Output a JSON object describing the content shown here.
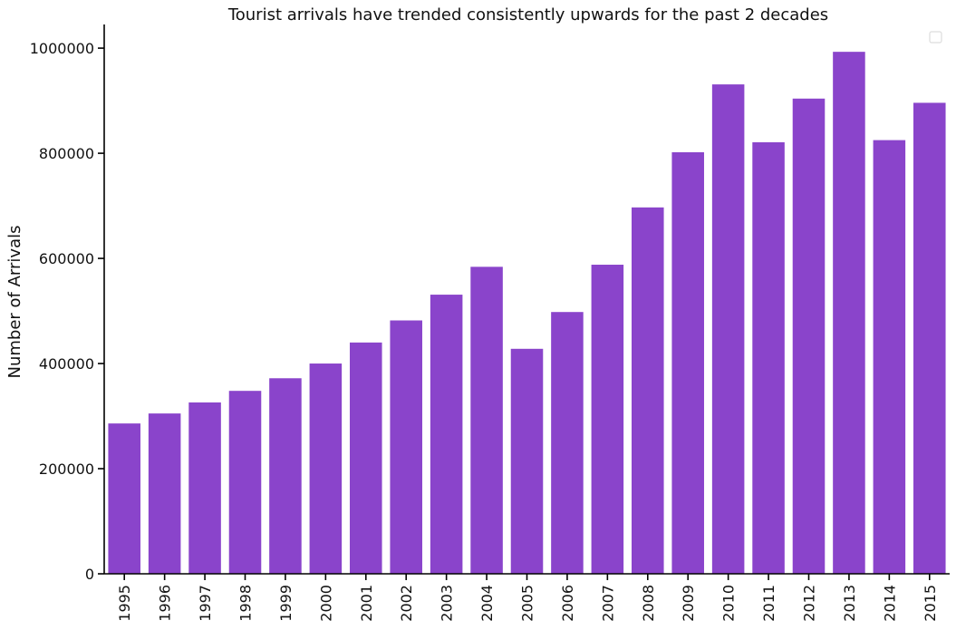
{
  "chart_data": {
    "type": "bar",
    "title": "Tourist arrivals have trended consistently upwards for the past 2 decades",
    "xlabel": "",
    "ylabel": "Number of Arrivals",
    "categories": [
      "1995",
      "1996",
      "1997",
      "1998",
      "1999",
      "2000",
      "2001",
      "2002",
      "2003",
      "2004",
      "2005",
      "2006",
      "2007",
      "2008",
      "2009",
      "2010",
      "2011",
      "2012",
      "2013",
      "2014",
      "2015"
    ],
    "values": [
      286000,
      305000,
      326000,
      348000,
      372000,
      400000,
      440000,
      482000,
      531000,
      584000,
      428000,
      498000,
      588000,
      697000,
      802000,
      931000,
      821000,
      904000,
      993000,
      825000,
      896000
    ],
    "yticks": [
      0,
      200000,
      400000,
      600000,
      800000,
      1000000
    ],
    "ytick_labels": [
      "0",
      "200000",
      "400000",
      "600000",
      "800000",
      "1000000"
    ],
    "ylim": [
      0,
      1045000
    ],
    "bar_color": "#8a44cb",
    "grid": false,
    "legend_placement": "top-right"
  }
}
